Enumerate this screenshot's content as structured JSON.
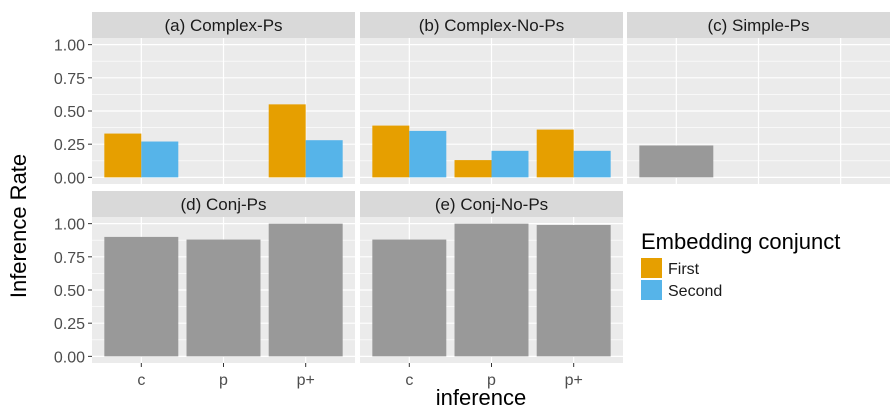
{
  "chart_data": {
    "type": "bar",
    "xlabel": "inference",
    "ylabel": "Inference Rate",
    "ylim": [
      0,
      1.0
    ],
    "yticks": [
      0,
      0.25,
      0.5,
      0.75,
      1.0
    ],
    "ytick_labels": [
      "0.00",
      "0.25",
      "0.50",
      "0.75",
      "1.00"
    ],
    "categories": [
      "c",
      "p",
      "p+"
    ],
    "grid": true,
    "legend": {
      "title": "Embedding conjunct",
      "placement": "right",
      "entries": [
        {
          "name": "First",
          "color": "#E69F00"
        },
        {
          "name": "Second",
          "color": "#56B4E9"
        }
      ]
    },
    "colors": {
      "First": "#E69F00",
      "Second": "#56B4E9",
      "single": "#999999",
      "panel_bg": "#EBEBEB",
      "strip_bg": "#D9D9D9",
      "grid": "#FFFFFF"
    },
    "facets": [
      {
        "title": "(a) Complex-Ps",
        "dodged": true,
        "series": [
          {
            "name": "First",
            "values": [
              0.33,
              null,
              0.55
            ]
          },
          {
            "name": "Second",
            "values": [
              0.27,
              null,
              0.28
            ]
          }
        ]
      },
      {
        "title": "(b) Complex-No-Ps",
        "dodged": true,
        "series": [
          {
            "name": "First",
            "values": [
              0.39,
              0.13,
              0.36
            ]
          },
          {
            "name": "Second",
            "values": [
              0.35,
              0.2,
              0.2
            ]
          }
        ]
      },
      {
        "title": "(c) Simple-Ps",
        "dodged": false,
        "series": [
          {
            "name": "",
            "values": [
              0.24,
              null,
              null
            ]
          }
        ]
      },
      {
        "title": "(d) Conj-Ps",
        "dodged": false,
        "series": [
          {
            "name": "",
            "values": [
              0.9,
              0.88,
              1.0
            ]
          }
        ]
      },
      {
        "title": "(e) Conj-No-Ps",
        "dodged": false,
        "series": [
          {
            "name": "",
            "values": [
              0.88,
              1.0,
              0.99
            ]
          }
        ]
      }
    ]
  }
}
